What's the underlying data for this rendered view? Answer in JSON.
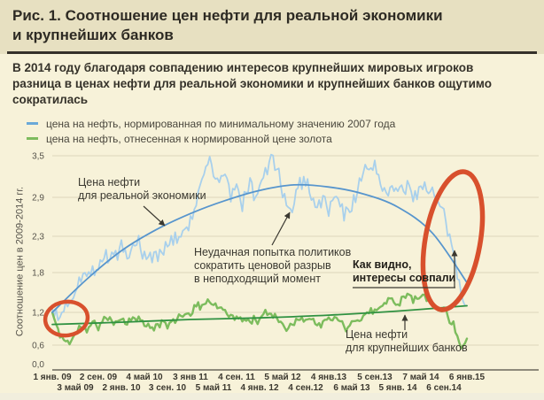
{
  "title": "Рис. 1. Соотношение цен нефти для реальной экономики\nи крупнейших банков",
  "subtitle": "В 2014 году благодаря совпадению интересов крупнейших мировых игроков\nразница в ценах нефти для реальной экономики и крупнейших банков ощутимо\nсократилась",
  "legend": [
    {
      "label": "цена на нефть, нормированная по минимальному значению 2007 года",
      "color": "#6aa9d8"
    },
    {
      "label": "цена на нефть, отнесенная к нормированной цене золота",
      "color": "#7dbb5e"
    }
  ],
  "chart_data": {
    "type": "line",
    "ylabel": "Соотношение цен в 2009-2014 гг.",
    "grid": true,
    "x_range_months": 72,
    "x_tick_labels_row1": [
      "1 янв. 09",
      "2 сен. 09",
      "4 май 10",
      "3 янв 11",
      "4 сен. 11",
      "5 май 12",
      "4 янв.13",
      "5 сен.13",
      "7 май 14",
      "6 янв.15"
    ],
    "x_tick_labels_row2": [
      "3 май 09",
      "2 янв. 10",
      "3 сен. 10",
      "5 май 11",
      "4 янв. 12",
      "4 сен.12",
      "6 май 13",
      "5 янв. 14",
      "6 сен.14"
    ],
    "y_ticks": [
      {
        "value": 3.5,
        "label": "3,5"
      },
      {
        "value": 2.9,
        "label": "2,9"
      },
      {
        "value": 2.3,
        "label": "2,3"
      },
      {
        "value": 1.8,
        "label": "1,8"
      },
      {
        "value": 1.2,
        "label": "1,2"
      },
      {
        "value": 0.6,
        "label": "0,6"
      },
      {
        "value": 0.0,
        "label": "0,0"
      }
    ],
    "series": [
      {
        "name": "oil-price-normalized-2007-min",
        "style": "noisy",
        "color": "#a8d0ec",
        "jitter": 0.12,
        "seed": 7,
        "step_months": 1,
        "values": [
          1.25,
          1.05,
          1.25,
          1.4,
          1.55,
          1.8,
          1.7,
          1.9,
          1.85,
          2.05,
          2.0,
          2.05,
          2.1,
          1.95,
          2.1,
          2.25,
          1.95,
          2.0,
          2.05,
          2.15,
          2.1,
          2.25,
          2.3,
          2.45,
          2.55,
          2.8,
          3.1,
          3.45,
          3.25,
          3.15,
          3.3,
          2.85,
          3.05,
          2.8,
          3.1,
          2.95,
          3.0,
          3.25,
          3.5,
          3.3,
          2.95,
          2.6,
          2.85,
          3.1,
          3.15,
          2.95,
          2.8,
          2.85,
          2.75,
          2.9,
          2.8,
          2.65,
          2.8,
          3.0,
          3.3,
          3.2,
          3.4,
          3.1,
          3.0,
          3.05,
          2.95,
          3.05,
          3.0,
          2.95,
          3.05,
          3.1,
          2.95,
          2.8,
          2.6,
          2.25,
          1.9,
          1.5,
          1.3
        ]
      },
      {
        "name": "oil-price-vs-gold",
        "style": "noisy",
        "color": "#7cbc5d",
        "jitter": 0.07,
        "seed": 11,
        "step_months": 1,
        "values": [
          1.2,
          0.85,
          0.7,
          0.65,
          0.8,
          0.95,
          0.85,
          1.0,
          0.95,
          1.1,
          1.05,
          1.05,
          1.1,
          1.0,
          1.1,
          1.15,
          0.95,
          0.9,
          0.95,
          1.0,
          0.95,
          1.05,
          1.1,
          1.15,
          1.2,
          1.25,
          1.3,
          1.4,
          1.3,
          1.25,
          1.3,
          1.1,
          1.15,
          1.0,
          1.1,
          1.05,
          1.05,
          1.15,
          1.2,
          1.15,
          1.0,
          0.9,
          1.0,
          1.1,
          1.1,
          1.05,
          1.0,
          1.0,
          1.05,
          1.1,
          1.05,
          0.95,
          1.0,
          1.05,
          1.15,
          1.2,
          1.25,
          1.3,
          1.35,
          1.4,
          1.35,
          1.45,
          1.5,
          1.4,
          1.45,
          1.4,
          1.35,
          1.3,
          1.25,
          1.1,
          0.9,
          0.55,
          0.72
        ]
      },
      {
        "name": "real-economy-oil-price-trend",
        "style": "smooth",
        "color": "#5795cd",
        "step_months": 6,
        "values": [
          1.2,
          1.7,
          2.1,
          2.4,
          2.65,
          2.85,
          3.0,
          3.08,
          3.05,
          2.95,
          2.75,
          2.35,
          1.65
        ]
      },
      {
        "name": "banks-oil-price-trend",
        "style": "smooth",
        "color": "#2f9141",
        "step_months": 12,
        "values": [
          0.98,
          1.02,
          1.07,
          1.1,
          1.15,
          1.22,
          1.3
        ]
      }
    ],
    "annotations": {
      "real_economy": "Цена нефти\nдля реальной экономики",
      "failed_attempt": "Неудачная попытка политиков\nсократить ценовой разрыв\nв неподходящий момент",
      "interests": "Как видно,\nинтересы совпали",
      "banks": "Цена нефти\nдля крупнейших банков"
    },
    "highlight_color": "#d8502d",
    "annotation_ink": "#3b3931"
  }
}
